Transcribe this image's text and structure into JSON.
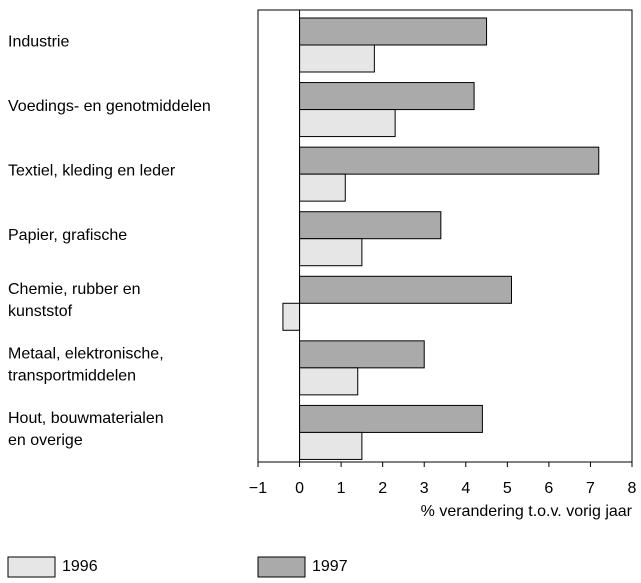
{
  "chart_data": {
    "type": "hbar",
    "categories": [
      [
        "Industrie"
      ],
      [
        "Voedings- en genotmiddelen"
      ],
      [
        "Textiel, kleding en leder"
      ],
      [
        "Papier, grafische"
      ],
      [
        "Chemie, rubber en",
        "kunststof"
      ],
      [
        "Metaal, elektronische,",
        "transportmiddelen"
      ],
      [
        "Hout, bouwmaterialen",
        "en overige"
      ]
    ],
    "series": [
      {
        "name": "1997",
        "color": "#aaaaaa",
        "values": [
          4.5,
          4.2,
          7.2,
          3.4,
          5.1,
          3.0,
          4.4
        ]
      },
      {
        "name": "1996",
        "color": "#e6e6e6",
        "values": [
          1.8,
          2.3,
          1.1,
          1.5,
          -0.4,
          1.4,
          1.5
        ]
      }
    ],
    "xlabel": "% verandering t.o.v. vorig jaar",
    "xlim": [
      -1,
      8
    ],
    "xticks": [
      {
        "value": -1,
        "label": "−1"
      },
      0,
      1,
      2,
      3,
      4,
      5,
      6,
      7,
      8
    ],
    "legend": "bottom"
  }
}
